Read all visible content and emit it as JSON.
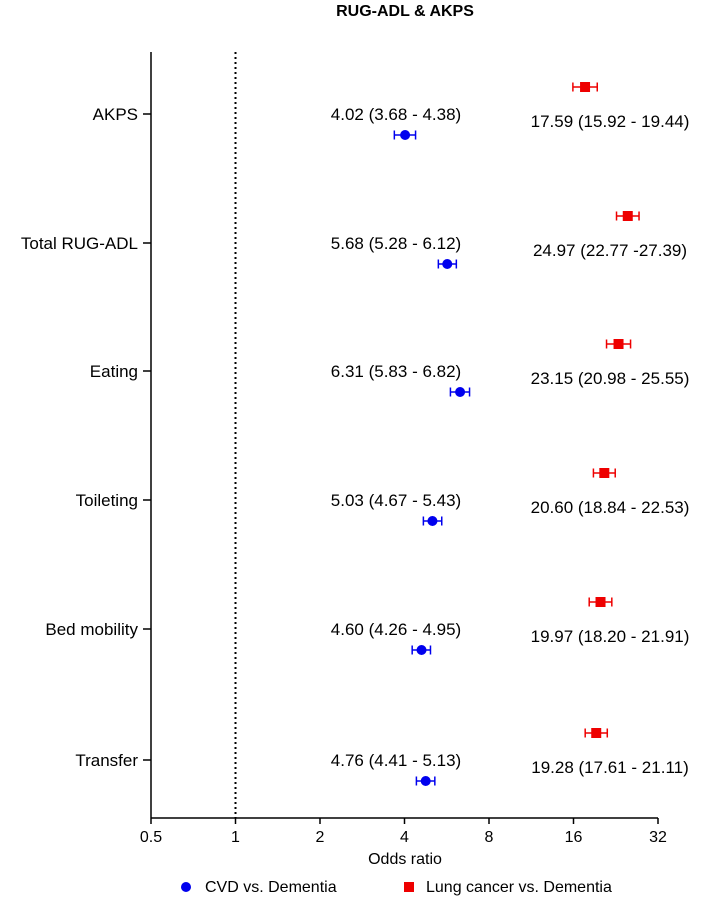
{
  "chart_data": {
    "type": "forest",
    "title": "RUG-ADL & AKPS",
    "xlabel": "Odds ratio",
    "xscale": "log2",
    "xlim": [
      0.5,
      32
    ],
    "xticks": [
      0.5,
      1,
      2,
      4,
      8,
      16,
      32
    ],
    "xtick_labels": [
      "0.5",
      "1",
      "2",
      "4",
      "8",
      "16",
      "32"
    ],
    "reference_line": 1,
    "categories": [
      "AKPS",
      "Total RUG-ADL",
      "Eating",
      "Toileting",
      "Bed mobility",
      "Transfer"
    ],
    "series": [
      {
        "name": "CVD vs. Dementia",
        "color": "#0000ee",
        "marker": "circle",
        "values": [
          4.02,
          5.68,
          6.31,
          5.03,
          4.6,
          4.76
        ],
        "ci_low": [
          3.68,
          5.28,
          5.83,
          4.67,
          4.26,
          4.41
        ],
        "ci_high": [
          4.38,
          6.12,
          6.82,
          5.43,
          4.95,
          5.13
        ],
        "labels": [
          "4.02 (3.68 - 4.38)",
          "5.68 (5.28 - 6.12)",
          "6.31 (5.83 - 6.82)",
          "5.03 (4.67 - 5.43)",
          "4.60 (4.26 - 4.95)",
          "4.76 (4.41 - 5.13)"
        ]
      },
      {
        "name": "Lung cancer vs. Dementia",
        "color": "#ee0000",
        "marker": "square",
        "values": [
          17.59,
          24.97,
          23.15,
          20.6,
          19.97,
          19.28
        ],
        "ci_low": [
          15.92,
          22.77,
          20.98,
          18.84,
          18.2,
          17.61
        ],
        "ci_high": [
          19.44,
          27.39,
          25.55,
          22.53,
          21.91,
          21.11
        ],
        "labels": [
          "17.59 (15.92 - 19.44)",
          "24.97 (22.77 -27.39)",
          "23.15 (20.98 - 25.55)",
          "20.60 (18.84 - 22.53)",
          "19.97 (18.20 - 21.91)",
          "19.28 (17.61 - 21.11)"
        ]
      }
    ],
    "legend": {
      "position": "bottom",
      "entries": [
        "CVD vs. Dementia",
        "Lung cancer vs. Dementia"
      ]
    }
  }
}
